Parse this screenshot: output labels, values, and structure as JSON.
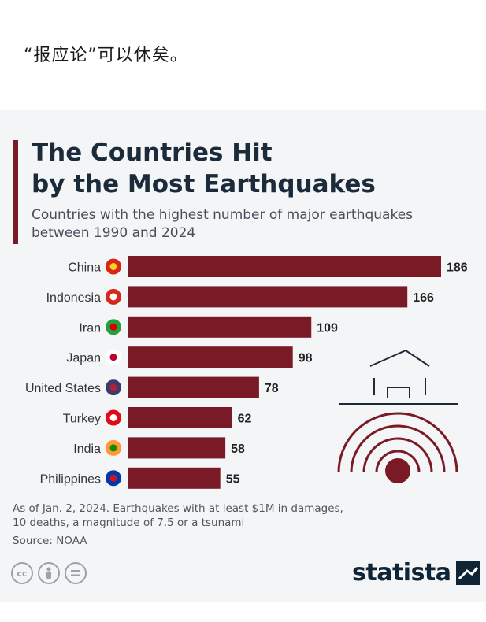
{
  "post": {
    "text": "“报应论”可以休矣。"
  },
  "chart_data": {
    "type": "bar",
    "orientation": "horizontal",
    "title_line1": "The Countries Hit",
    "title_line2": "by the Most Earthquakes",
    "subtitle_line1": "Countries with the highest number of major earthquakes",
    "subtitle_line2": "between 1990 and 2024",
    "categories": [
      "China",
      "Indonesia",
      "Iran",
      "Japan",
      "United States",
      "Turkey",
      "India",
      "Philippines"
    ],
    "values": [
      186,
      166,
      109,
      98,
      78,
      62,
      58,
      55
    ],
    "xlim": [
      0,
      186
    ],
    "bar_color": "#7a1a26",
    "footnote_line1": "As of Jan. 2, 2024. Earthquakes with at least $1M in damages,",
    "footnote_line2": "10 deaths, a magnitude of 7.5 or a tsunami",
    "source": "Source: NOAA"
  },
  "brand": {
    "logo": "statista"
  },
  "license_icons": [
    "cc-icon",
    "attribution-icon",
    "no-derivatives-icon"
  ]
}
